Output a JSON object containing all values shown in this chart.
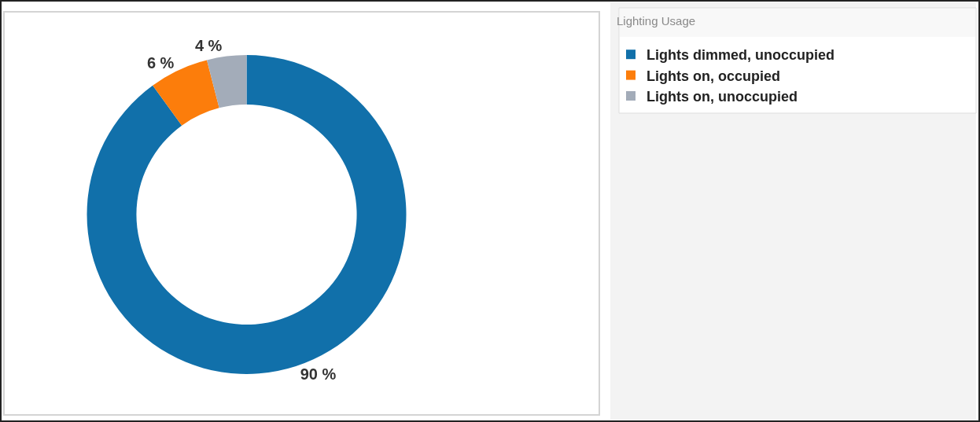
{
  "chart_data": {
    "type": "donut",
    "legend_title": "Lighting Usage",
    "categories": [
      "Lights dimmed, unoccupied",
      "Lights on, occupied",
      "Lights on, unoccupied"
    ],
    "values": [
      90,
      6,
      4
    ],
    "colors": [
      "#1170aa",
      "#fc7d0b",
      "#a3acb9"
    ],
    "value_labels": [
      "90 %",
      "6 %",
      "4 %"
    ],
    "legend": "top right"
  }
}
